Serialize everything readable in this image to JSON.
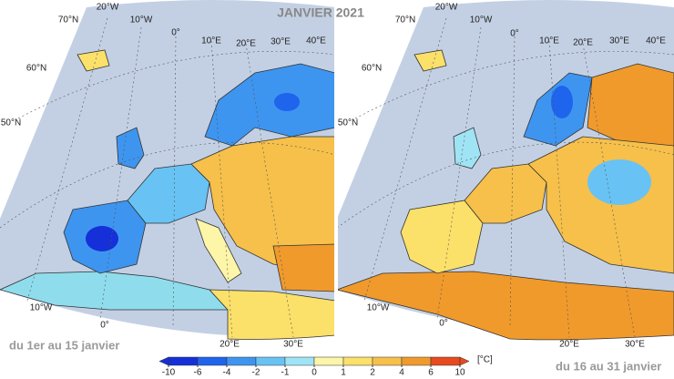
{
  "title": "JANVIER 2021",
  "panels": [
    {
      "caption": "du 1er au 15 janvier",
      "labels": [
        "70°N",
        "60°N",
        "50°N",
        "20°W",
        "10°W",
        "0°",
        "10°E",
        "20°E",
        "30°E",
        "40°E",
        "10°W",
        "0°",
        "20°E",
        "30°E"
      ]
    },
    {
      "caption": "du 16 au 31 janvier",
      "labels": [
        "70°N",
        "60°N",
        "50°N",
        "20°W",
        "10°W",
        "0°",
        "10°E",
        "20°E",
        "30°E",
        "40°E",
        "10°W",
        "0°",
        "20°E",
        "30°E"
      ]
    }
  ],
  "legend": {
    "unit": "[°C]",
    "ticks": [
      -10,
      -6,
      -4,
      -2,
      -1,
      0,
      1,
      2,
      4,
      6,
      10
    ],
    "colors": [
      "#1530d8",
      "#1f64ec",
      "#3d95f0",
      "#68c3f4",
      "#9fe4f4",
      "#fdf5a8",
      "#fbe06a",
      "#f6c04a",
      "#f09a2c",
      "#e64a1e"
    ]
  }
}
